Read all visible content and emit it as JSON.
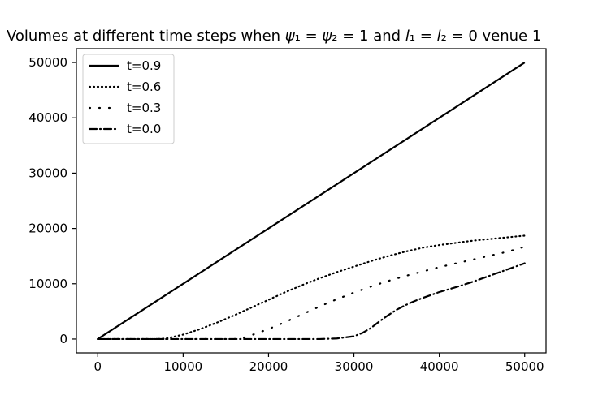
{
  "chart_data": {
    "type": "line",
    "title": "Volumes at different time steps when ψ₁ = ψ₂ = 1 and l₁ = l₂ = 0 venue 1",
    "xlabel": "",
    "ylabel": "",
    "xlim": [
      -2500,
      52500
    ],
    "ylim": [
      -2500,
      52500
    ],
    "x_ticks": [
      0,
      10000,
      20000,
      30000,
      40000,
      50000
    ],
    "y_ticks": [
      0,
      10000,
      20000,
      30000,
      40000,
      50000
    ],
    "x_tick_labels": [
      "0",
      "10000",
      "20000",
      "30000",
      "40000",
      "50000"
    ],
    "y_tick_labels": [
      "0",
      "10000",
      "20000",
      "30000",
      "40000",
      "50000"
    ],
    "grid": false,
    "legend_position": "top-left",
    "color": "#000000",
    "series": [
      {
        "name": "t=0.9",
        "style": "solid",
        "points": [
          [
            0,
            0
          ],
          [
            50000,
            50000
          ]
        ]
      },
      {
        "name": "t=0.6",
        "style": "dotted",
        "points": [
          [
            0,
            0
          ],
          [
            7000,
            0
          ],
          [
            8000,
            100
          ],
          [
            10000,
            800
          ],
          [
            12000,
            1800
          ],
          [
            14000,
            3000
          ],
          [
            16000,
            4300
          ],
          [
            18000,
            5700
          ],
          [
            20000,
            7100
          ],
          [
            22000,
            8500
          ],
          [
            24000,
            9800
          ],
          [
            26000,
            11000
          ],
          [
            28000,
            12100
          ],
          [
            30000,
            13100
          ],
          [
            32000,
            14100
          ],
          [
            34000,
            15000
          ],
          [
            36000,
            15800
          ],
          [
            38000,
            16500
          ],
          [
            40000,
            17000
          ],
          [
            42000,
            17400
          ],
          [
            44000,
            17800
          ],
          [
            46000,
            18100
          ],
          [
            48000,
            18400
          ],
          [
            50000,
            18700
          ]
        ]
      },
      {
        "name": "t=0.3",
        "style": "loosely-dotted",
        "points": [
          [
            0,
            0
          ],
          [
            16000,
            0
          ],
          [
            17000,
            200
          ],
          [
            18000,
            700
          ],
          [
            20000,
            1800
          ],
          [
            22000,
            3100
          ],
          [
            24000,
            4500
          ],
          [
            26000,
            5900
          ],
          [
            28000,
            7200
          ],
          [
            30000,
            8400
          ],
          [
            32000,
            9500
          ],
          [
            34000,
            10500
          ],
          [
            36000,
            11400
          ],
          [
            38000,
            12200
          ],
          [
            40000,
            13000
          ],
          [
            42000,
            13700
          ],
          [
            44000,
            14400
          ],
          [
            46000,
            15100
          ],
          [
            48000,
            15800
          ],
          [
            50000,
            16700
          ]
        ]
      },
      {
        "name": "t=0.0",
        "style": "dashdot",
        "points": [
          [
            0,
            0
          ],
          [
            26000,
            0
          ],
          [
            28000,
            100
          ],
          [
            29000,
            300
          ],
          [
            30000,
            500
          ],
          [
            31000,
            1100
          ],
          [
            32000,
            2000
          ],
          [
            33000,
            3200
          ],
          [
            34000,
            4300
          ],
          [
            35000,
            5300
          ],
          [
            36000,
            6100
          ],
          [
            37000,
            6800
          ],
          [
            38000,
            7400
          ],
          [
            40000,
            8500
          ],
          [
            42000,
            9400
          ],
          [
            44000,
            10400
          ],
          [
            46000,
            11500
          ],
          [
            48000,
            12600
          ],
          [
            50000,
            13700
          ]
        ]
      }
    ]
  }
}
